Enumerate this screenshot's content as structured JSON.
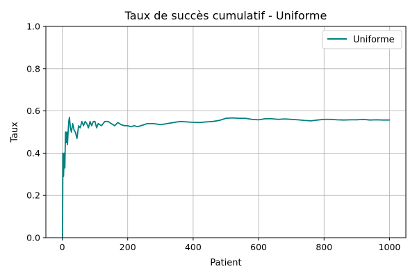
{
  "chart_data": {
    "type": "line",
    "title": "Taux de succès cumulatif - Uniforme",
    "xlabel": "Patient",
    "ylabel": "Taux",
    "xlim": [
      -50,
      1050
    ],
    "ylim": [
      0.0,
      1.0
    ],
    "xticks": [
      0,
      200,
      400,
      600,
      800,
      1000
    ],
    "yticks": [
      0.0,
      0.2,
      0.4,
      0.6,
      0.8,
      1.0
    ],
    "xtick_labels": [
      "0",
      "200",
      "400",
      "600",
      "800",
      "1000"
    ],
    "ytick_labels": [
      "0.0",
      "0.2",
      "0.4",
      "0.6",
      "0.8",
      "1.0"
    ],
    "grid": true,
    "legend": {
      "position": "top-right"
    },
    "series": [
      {
        "name": "Uniforme",
        "color": "#008080",
        "x": [
          1,
          2,
          4,
          6,
          8,
          10,
          12,
          14,
          16,
          18,
          20,
          22,
          25,
          28,
          32,
          36,
          40,
          45,
          50,
          55,
          60,
          65,
          70,
          75,
          80,
          85,
          90,
          95,
          100,
          105,
          110,
          120,
          130,
          140,
          150,
          160,
          170,
          180,
          190,
          200,
          210,
          220,
          230,
          240,
          250,
          260,
          280,
          300,
          320,
          340,
          360,
          380,
          400,
          420,
          440,
          460,
          480,
          500,
          520,
          540,
          560,
          580,
          600,
          620,
          640,
          660,
          680,
          700,
          720,
          740,
          760,
          780,
          800,
          820,
          840,
          860,
          880,
          900,
          920,
          940,
          960,
          980,
          1000
        ],
        "y": [
          0.0,
          0.4,
          0.29,
          0.4,
          0.33,
          0.5,
          0.45,
          0.5,
          0.44,
          0.5,
          0.55,
          0.57,
          0.52,
          0.5,
          0.54,
          0.51,
          0.5,
          0.47,
          0.53,
          0.52,
          0.55,
          0.53,
          0.55,
          0.54,
          0.52,
          0.55,
          0.53,
          0.55,
          0.55,
          0.52,
          0.54,
          0.53,
          0.55,
          0.55,
          0.54,
          0.53,
          0.545,
          0.535,
          0.53,
          0.53,
          0.525,
          0.53,
          0.525,
          0.53,
          0.535,
          0.54,
          0.54,
          0.535,
          0.54,
          0.545,
          0.55,
          0.548,
          0.546,
          0.545,
          0.548,
          0.55,
          0.555,
          0.565,
          0.567,
          0.565,
          0.565,
          0.56,
          0.558,
          0.563,
          0.563,
          0.56,
          0.562,
          0.56,
          0.558,
          0.555,
          0.553,
          0.557,
          0.56,
          0.56,
          0.558,
          0.557,
          0.558,
          0.558,
          0.56,
          0.557,
          0.558,
          0.557,
          0.557
        ]
      }
    ]
  }
}
